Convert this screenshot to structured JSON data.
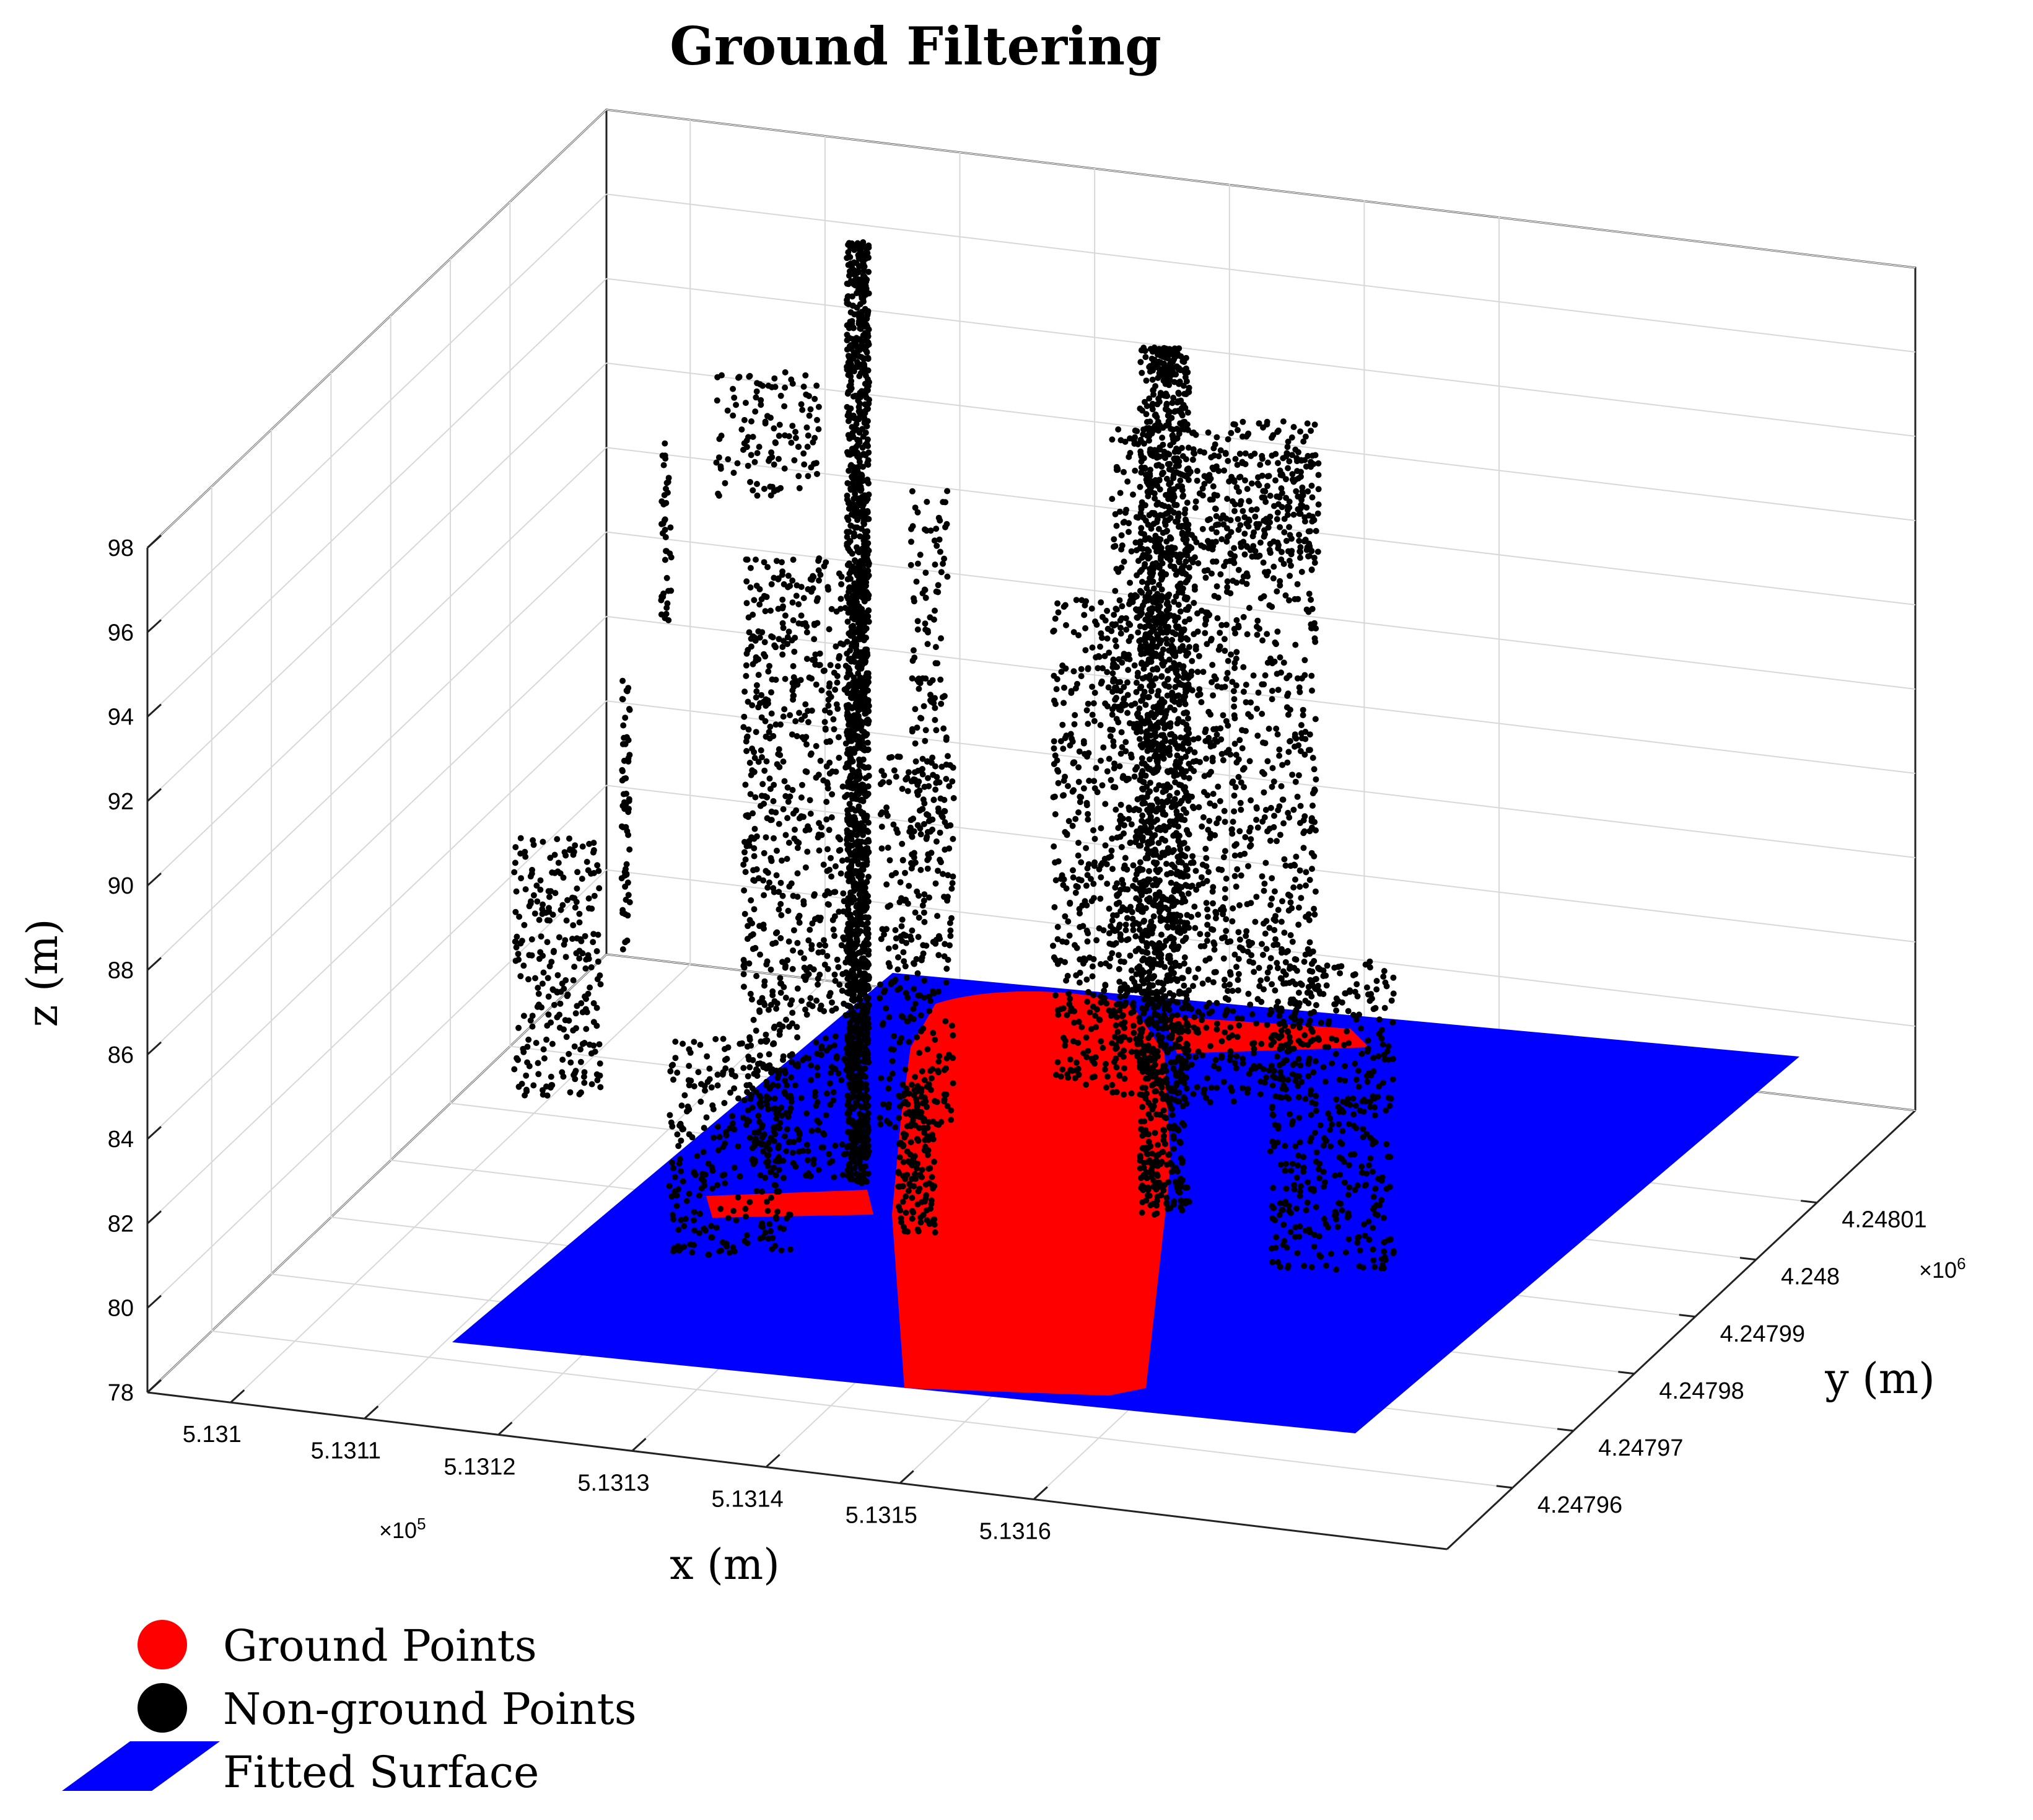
{
  "chart_data": {
    "type": "scatter",
    "title": "Ground Filtering",
    "xlabel": "x (m)",
    "ylabel": "y (m)",
    "zlabel": "z (m)",
    "x_ticks": [
      "5.131",
      "5.1311",
      "5.1312",
      "5.1313",
      "5.1314",
      "5.1315",
      "5.1316"
    ],
    "x_multiplier": "×10",
    "x_exponent": "5",
    "y_ticks": [
      "4.24796",
      "4.24797",
      "4.24798",
      "4.24799",
      "4.248",
      "4.24801"
    ],
    "y_multiplier": "×10",
    "y_exponent": "6",
    "z_ticks": [
      "78",
      "80",
      "82",
      "84",
      "86",
      "88",
      "90",
      "92",
      "94",
      "96",
      "98"
    ],
    "zlim": [
      78,
      98
    ],
    "grid": true,
    "legend_placement": "bottom-left",
    "series": [
      {
        "name": "Ground Points",
        "color": "#ff0000",
        "marker": "circle"
      },
      {
        "name": "Non-ground Points",
        "color": "#000000",
        "marker": "circle"
      },
      {
        "name": "Fitted Surface",
        "color": "#0000ff",
        "marker": "surface"
      }
    ]
  }
}
